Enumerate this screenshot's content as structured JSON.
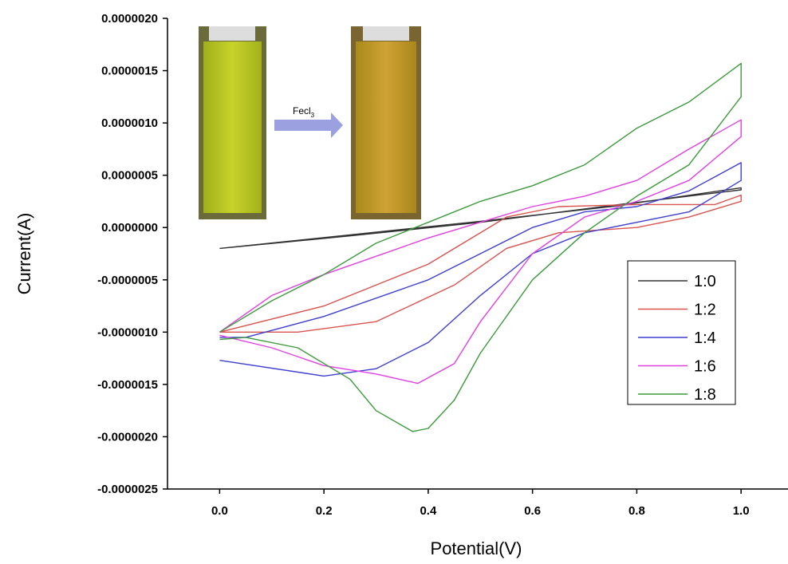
{
  "chart_data": {
    "type": "line",
    "xlabel": "Potential(V)",
    "ylabel": "Current(A)",
    "inset": {
      "arrow_label": "Fecl",
      "arrow_label_subscript": "3"
    },
    "xlim": [
      -0.1,
      1.09
    ],
    "ylim": [
      -2.5e-06,
      2e-06
    ],
    "xticks": [
      {
        "value": 0,
        "label": "0.0"
      },
      0.2,
      0.4,
      0.6,
      0.8,
      {
        "value": 1,
        "label": "1.0"
      }
    ],
    "yticks": [
      {
        "value": -2.5e-06,
        "label": "-0.0000025"
      },
      {
        "value": -2e-06,
        "label": "-0.0000020"
      },
      {
        "value": -1.5e-06,
        "label": "-0.0000015"
      },
      {
        "value": -1e-06,
        "label": "-0.0000010"
      },
      {
        "value": -5e-07,
        "label": "-0.0000005"
      },
      {
        "value": 0,
        "label": "0.0000000"
      },
      {
        "value": 5e-07,
        "label": "0.0000005"
      },
      {
        "value": 1e-06,
        "label": "0.0000010"
      },
      {
        "value": 1.5e-06,
        "label": "0.0000015"
      },
      {
        "value": 2e-06,
        "label": "0.0000020"
      }
    ],
    "legend": "right",
    "series": [
      {
        "name": "1:0",
        "color": "#333333",
        "x": [
          0,
          0.25,
          0.5,
          0.75,
          1.0,
          1.0,
          0.75,
          0.5,
          0.25,
          0
        ],
        "values": [
          -2e-07,
          -7e-08,
          6e-08,
          2e-07,
          3.8e-07,
          3.6e-07,
          2.1e-07,
          5e-08,
          -8e-08,
          -2e-07
        ]
      },
      {
        "name": "1:2",
        "color": "#d9534f",
        "x": [
          0,
          0.2,
          0.4,
          0.55,
          0.65,
          0.8,
          0.95,
          1.0,
          1.0,
          0.9,
          0.8,
          0.65,
          0.55,
          0.45,
          0.3,
          0.15,
          0
        ],
        "values": [
          -1e-06,
          -7.5e-07,
          -3.5e-07,
          1e-07,
          2e-07,
          2.2e-07,
          2.2e-07,
          3.1e-07,
          2.5e-07,
          1e-07,
          0,
          -5e-08,
          -2e-07,
          -5.5e-07,
          -9e-07,
          -1e-06,
          -1e-06
        ]
      },
      {
        "name": "1:4",
        "color": "#3f3fcf",
        "x": [
          0,
          0.2,
          0.3,
          0.4,
          0.5,
          0.6,
          0.7,
          0.8,
          0.9,
          1.0,
          1.0,
          0.9,
          0.8,
          0.7,
          0.6,
          0.5,
          0.4,
          0.2,
          0.05,
          0
        ],
        "values": [
          -1.27e-06,
          -1.42e-06,
          -1.35e-06,
          -1.1e-06,
          -6.5e-07,
          -2.5e-07,
          -5e-08,
          5e-08,
          1.5e-07,
          4.5e-07,
          6.2e-07,
          3.5e-07,
          2e-07,
          1.5e-07,
          0,
          -2.5e-07,
          -5e-07,
          -8.5e-07,
          -1.05e-06,
          -1.05e-06
        ]
      },
      {
        "name": "1:6",
        "color": "#e040e0",
        "x": [
          0,
          0.1,
          0.2,
          0.4,
          0.6,
          0.7,
          0.8,
          0.9,
          1.0,
          1.0,
          0.9,
          0.8,
          0.7,
          0.6,
          0.5,
          0.45,
          0.38,
          0.3,
          0.2,
          0.1,
          0
        ],
        "values": [
          -1e-06,
          -6.5e-07,
          -4.5e-07,
          -1e-07,
          2e-07,
          3e-07,
          4.5e-07,
          7.5e-07,
          1.03e-06,
          8.7e-07,
          4.5e-07,
          2.5e-07,
          1e-07,
          -2.5e-07,
          -9e-07,
          -1.3e-06,
          -1.49e-06,
          -1.4e-06,
          -1.32e-06,
          -1.15e-06,
          -1.03e-06
        ]
      },
      {
        "name": "1:8",
        "color": "#3c9a3c",
        "x": [
          0,
          0.1,
          0.2,
          0.3,
          0.4,
          0.5,
          0.6,
          0.7,
          0.8,
          0.9,
          1.0,
          1.0,
          0.9,
          0.8,
          0.7,
          0.6,
          0.5,
          0.45,
          0.4,
          0.37,
          0.3,
          0.25,
          0.15,
          0.05,
          0
        ],
        "values": [
          -1e-06,
          -7e-07,
          -4.5e-07,
          -1.5e-07,
          5e-08,
          2.5e-07,
          4e-07,
          6e-07,
          9.5e-07,
          1.2e-06,
          1.57e-06,
          1.25e-06,
          6e-07,
          3e-07,
          -5e-08,
          -5e-07,
          -1.2e-06,
          -1.65e-06,
          -1.92e-06,
          -1.95e-06,
          -1.75e-06,
          -1.45e-06,
          -1.15e-06,
          -1.05e-06,
          -1.07e-06
        ]
      }
    ]
  }
}
